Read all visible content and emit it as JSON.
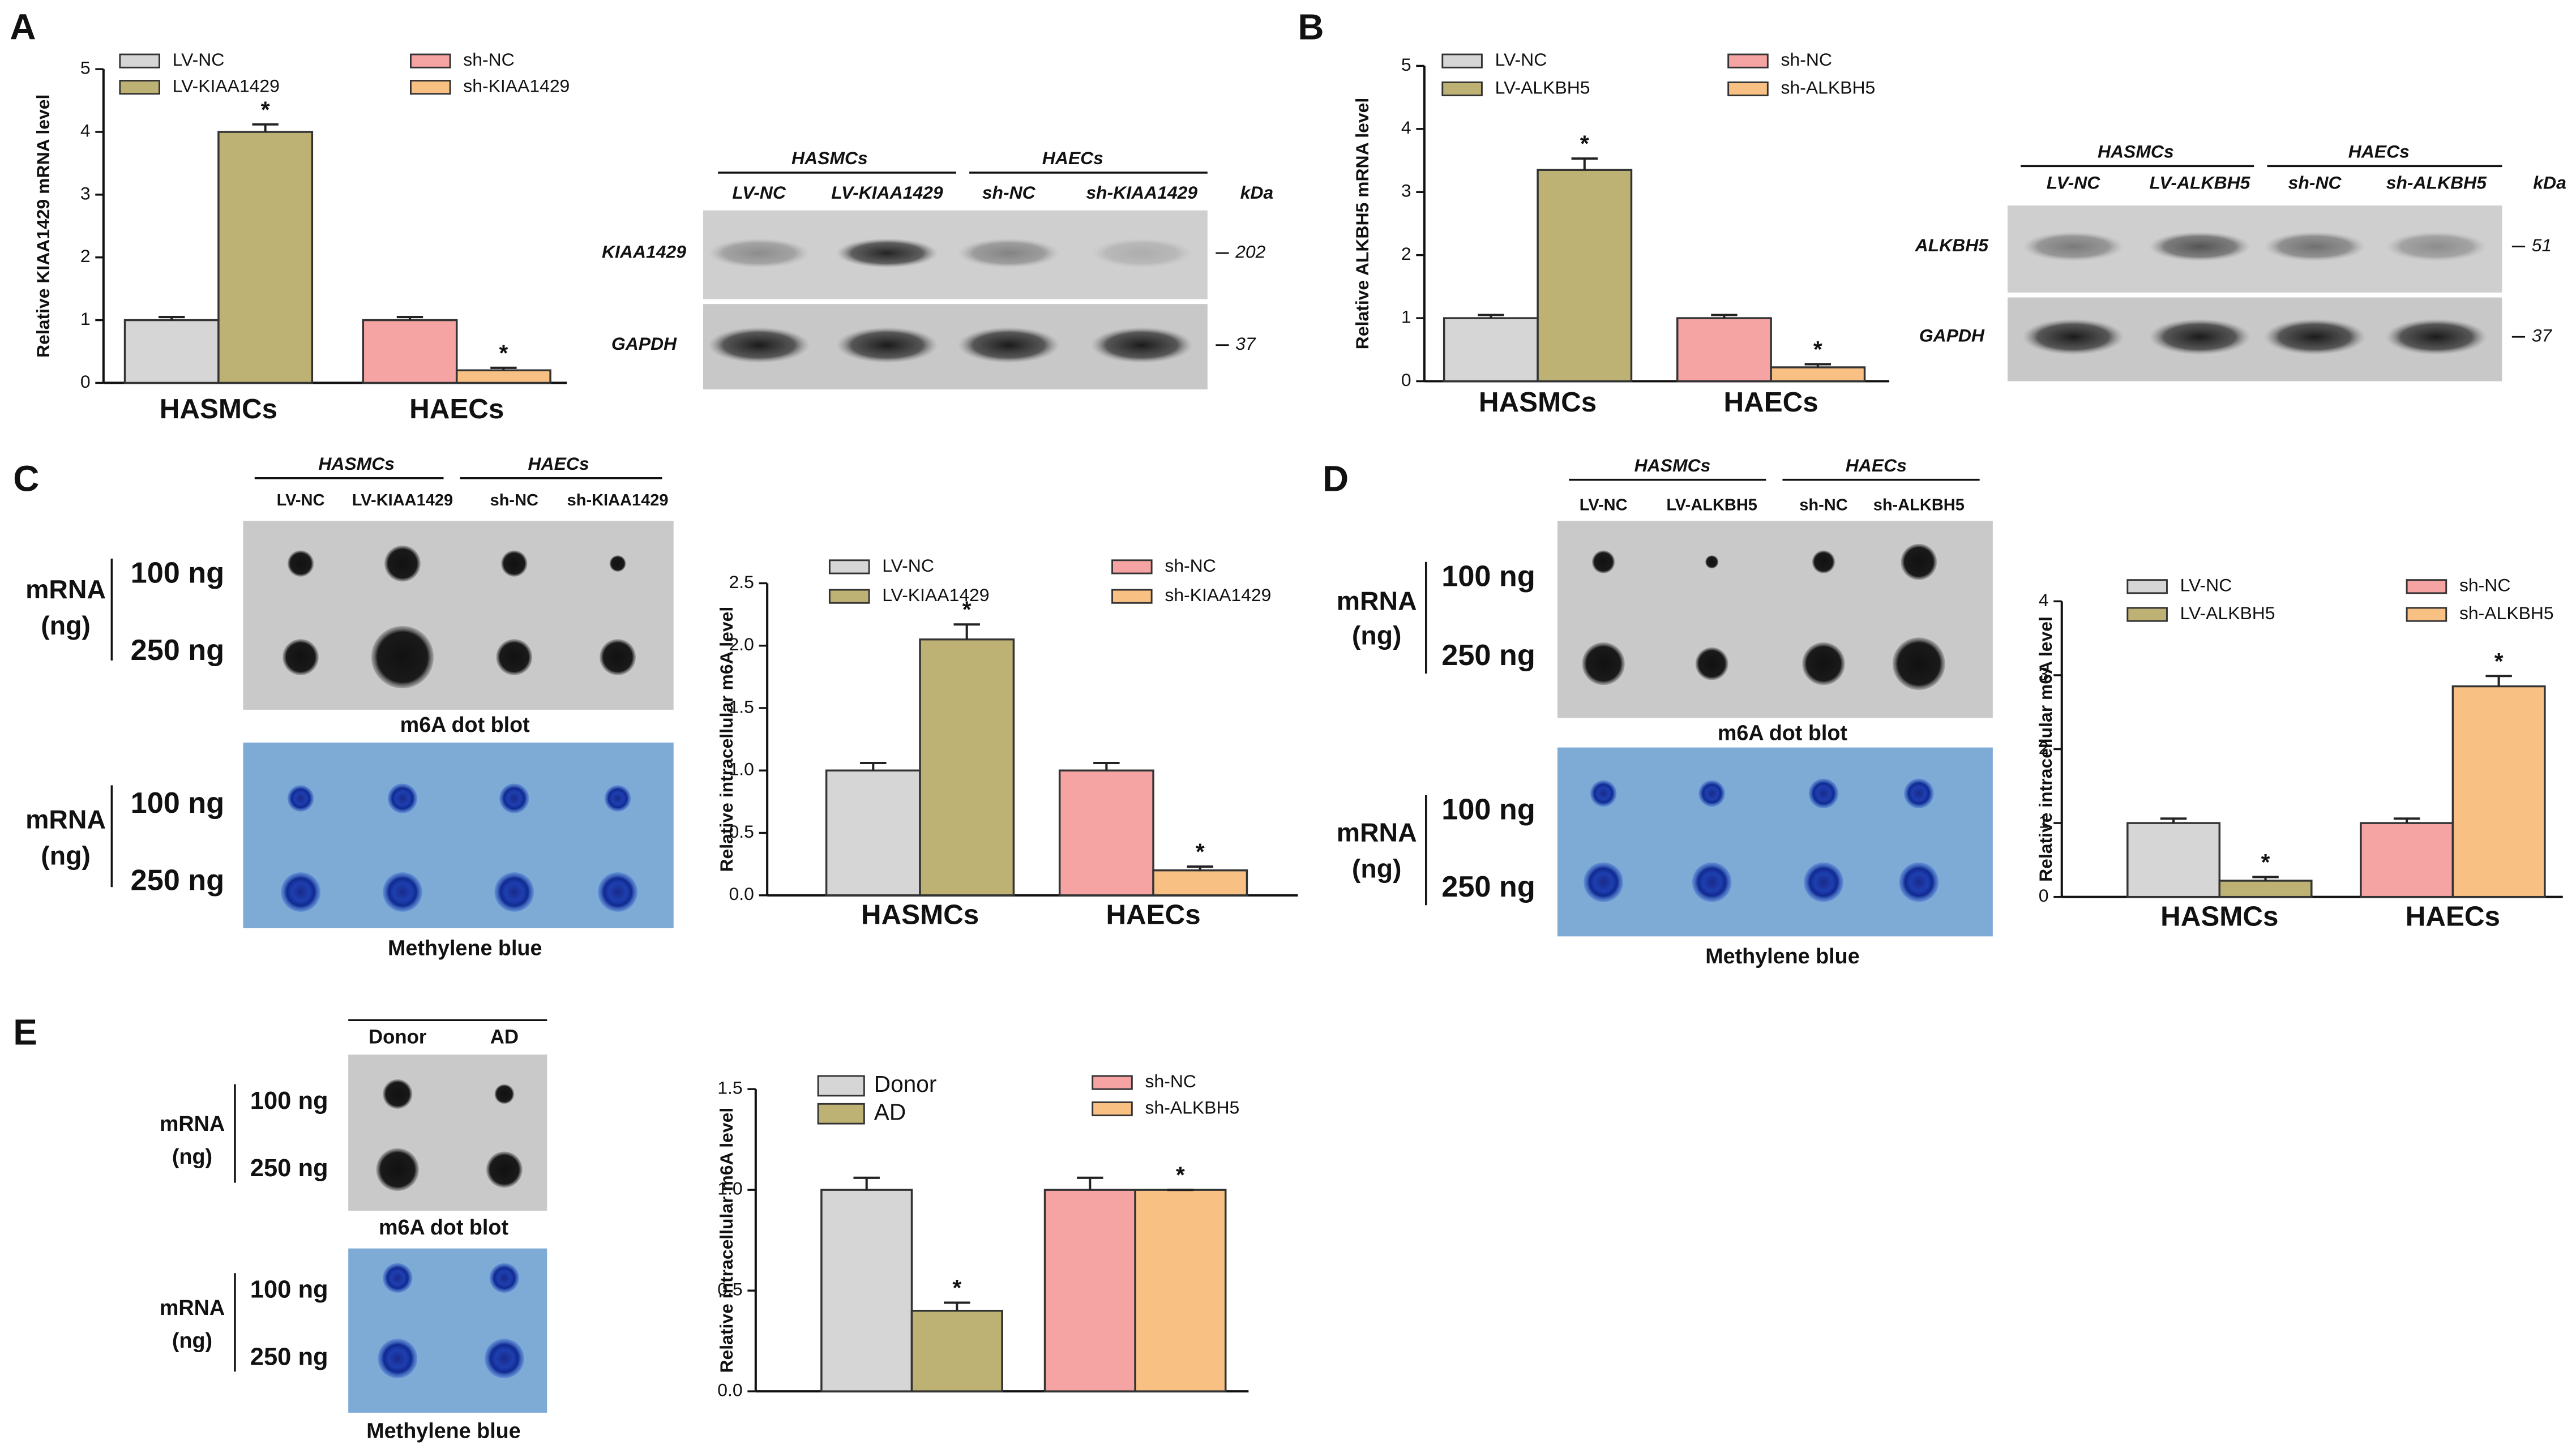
{
  "panel_labels": [
    "A",
    "B",
    "C",
    "D",
    "E"
  ],
  "western_blots": [
    {
      "groups": [
        "HASMCs",
        "HAECs"
      ],
      "lanes": [
        "LV-NC",
        "LV-KIAA1429",
        "sh-NC",
        "sh-KIAA1429"
      ],
      "rows": [
        "KIAA1429",
        "GAPDH"
      ],
      "unit": "kDa",
      "sizes": [
        202,
        37
      ]
    },
    {
      "groups": [
        "HASMCs",
        "HAECs"
      ],
      "lanes": [
        "LV-NC",
        "LV-ALKBH5",
        "sh-NC",
        "sh-ALKBH5"
      ],
      "rows": [
        "ALKBH5",
        "GAPDH"
      ],
      "unit": "kDa",
      "sizes": [
        51,
        37
      ]
    }
  ],
  "dot_blots": [
    {
      "groups": [
        "HASMCs",
        "HAECs"
      ],
      "lanes": [
        "LV-NC",
        "LV-KIAA1429",
        "sh-NC",
        "sh-KIAA1429"
      ],
      "amounts": [
        "100 ng",
        "250 ng"
      ],
      "axis_label": [
        "mRNA",
        "(ng)"
      ],
      "captions": [
        "m6A dot blot",
        "Methylene blue"
      ]
    },
    {
      "groups": [
        "HASMCs",
        "HAECs"
      ],
      "lanes": [
        "LV-NC",
        "LV-ALKBH5",
        "sh-NC",
        "sh-ALKBH5"
      ],
      "amounts": [
        "100 ng",
        "250 ng"
      ],
      "axis_label": [
        "mRNA",
        "(ng)"
      ],
      "captions": [
        "m6A dot blot",
        "Methylene blue"
      ]
    },
    {
      "lanes": [
        "Donor",
        "AD"
      ],
      "amounts": [
        "100 ng",
        "250 ng"
      ],
      "axis_label": [
        "mRNA",
        "(ng)"
      ],
      "captions": [
        "m6A dot blot",
        "Methylene blue"
      ]
    }
  ],
  "chart_data": [
    {
      "type": "bar",
      "y_label": "Relative KIAA1429 mRNA level",
      "categories": [
        "HASMCs",
        "HAECs"
      ],
      "ylim": [
        0,
        5
      ],
      "yticks": [
        0,
        1,
        2,
        3,
        4,
        5
      ],
      "series": [
        {
          "name": "LV-NC",
          "color": "#d6d6d6",
          "values": [
            1.0,
            null
          ],
          "errors": [
            0.05,
            null
          ],
          "significance": [
            null,
            null
          ]
        },
        {
          "name": "LV-KIAA1429",
          "color": "#bdb174",
          "values": [
            4.0,
            null
          ],
          "errors": [
            0.12,
            null
          ],
          "significance": [
            "*",
            null
          ]
        },
        {
          "name": "sh-NC",
          "color": "#f5a3a3",
          "values": [
            null,
            1.0
          ],
          "errors": [
            null,
            0.05
          ],
          "significance": [
            null,
            null
          ]
        },
        {
          "name": "sh-KIAA1429",
          "color": "#f9c084",
          "values": [
            null,
            0.2
          ],
          "errors": [
            null,
            0.04
          ],
          "significance": [
            null,
            "*"
          ]
        }
      ]
    },
    {
      "type": "bar",
      "y_label": "Relative ALKBH5 mRNA level",
      "categories": [
        "HASMCs",
        "HAECs"
      ],
      "ylim": [
        0,
        5
      ],
      "yticks": [
        0,
        1,
        2,
        3,
        4,
        5
      ],
      "series": [
        {
          "name": "LV-NC",
          "color": "#d6d6d6",
          "values": [
            1.0,
            null
          ],
          "errors": [
            0.05,
            null
          ],
          "significance": [
            null,
            null
          ]
        },
        {
          "name": "LV-ALKBH5",
          "color": "#bdb174",
          "values": [
            3.35,
            null
          ],
          "errors": [
            0.18,
            null
          ],
          "significance": [
            "*",
            null
          ]
        },
        {
          "name": "sh-NC",
          "color": "#f5a3a3",
          "values": [
            null,
            1.0
          ],
          "errors": [
            null,
            0.05
          ],
          "significance": [
            null,
            null
          ]
        },
        {
          "name": "sh-ALKBH5",
          "color": "#f9c084",
          "values": [
            null,
            0.22
          ],
          "errors": [
            null,
            0.05
          ],
          "significance": [
            null,
            "*"
          ]
        }
      ]
    },
    {
      "type": "bar",
      "y_label": "Relative intracellular m6A level",
      "categories": [
        "HASMCs",
        "HAECs"
      ],
      "ylim": [
        0,
        2.5
      ],
      "yticks": [
        {
          "value": 0,
          "label": "0.0"
        },
        {
          "value": 0.5,
          "label": "0.5"
        },
        {
          "value": 1,
          "label": "1.0"
        },
        {
          "value": 1.5,
          "label": "1.5"
        },
        {
          "value": 2,
          "label": "2.0"
        },
        {
          "value": 2.5,
          "label": "2.5"
        }
      ],
      "series": [
        {
          "name": "LV-NC",
          "color": "#d6d6d6",
          "values": [
            1.0,
            null
          ],
          "errors": [
            0.06,
            null
          ],
          "significance": [
            null,
            null
          ]
        },
        {
          "name": "LV-KIAA1429",
          "color": "#bdb174",
          "values": [
            2.05,
            null
          ],
          "errors": [
            0.12,
            null
          ],
          "significance": [
            "*",
            null
          ]
        },
        {
          "name": "sh-NC",
          "color": "#f5a3a3",
          "values": [
            null,
            1.0
          ],
          "errors": [
            null,
            0.06
          ],
          "significance": [
            null,
            null
          ]
        },
        {
          "name": "sh-KIAA1429",
          "color": "#f9c084",
          "values": [
            null,
            0.2
          ],
          "errors": [
            null,
            0.03
          ],
          "significance": [
            null,
            "*"
          ]
        }
      ]
    },
    {
      "type": "bar",
      "y_label": "Relative intracellular m6A level",
      "categories": [
        "HASMCs",
        "HAECs"
      ],
      "ylim": [
        0,
        4
      ],
      "yticks": [
        0,
        1,
        2,
        3,
        4
      ],
      "series": [
        {
          "name": "LV-NC",
          "color": "#d6d6d6",
          "values": [
            1.0,
            null
          ],
          "errors": [
            0.06,
            null
          ],
          "significance": [
            null,
            null
          ]
        },
        {
          "name": "LV-ALKBH5",
          "color": "#bdb174",
          "values": [
            0.22,
            null
          ],
          "errors": [
            0.05,
            null
          ],
          "significance": [
            "*",
            null
          ]
        },
        {
          "name": "sh-NC",
          "color": "#f5a3a3",
          "values": [
            null,
            1.0
          ],
          "errors": [
            null,
            0.06
          ],
          "significance": [
            null,
            null
          ]
        },
        {
          "name": "sh-ALKBH5",
          "color": "#f9c084",
          "values": [
            null,
            2.85
          ],
          "errors": [
            null,
            0.14
          ],
          "significance": [
            null,
            "*"
          ]
        }
      ]
    },
    {
      "type": "bar",
      "y_label": "Relative intracellular m6A level",
      "categories": [
        null,
        null
      ],
      "ylim": [
        0,
        1.5
      ],
      "yticks": [
        {
          "value": 0,
          "label": "0.0"
        },
        {
          "value": 0.5,
          "label": "0.5"
        },
        {
          "value": 1,
          "label": "1.0"
        },
        {
          "value": 1.5,
          "label": "1.5"
        }
      ],
      "series": [
        {
          "name": "Donor",
          "color": "#d6d6d6",
          "values": [
            1.0,
            null
          ],
          "errors": [
            0.06,
            null
          ],
          "significance": [
            null,
            null
          ]
        },
        {
          "name": "AD",
          "color": "#bdb174",
          "values": [
            0.4,
            null
          ],
          "errors": [
            0.04,
            null
          ],
          "significance": [
            "*",
            null
          ]
        },
        {
          "name": "sh-NC",
          "color": "#f5a3a3",
          "values": [
            null,
            1.0
          ],
          "errors": [
            null,
            0.06
          ],
          "significance": [
            null,
            null
          ]
        },
        {
          "name": "sh-ALKBH5",
          "color": "#f9c084",
          "values": [
            null,
            1.0
          ],
          "errors": [
            null,
            0
          ],
          "significance": [
            null,
            "*"
          ]
        }
      ]
    }
  ]
}
